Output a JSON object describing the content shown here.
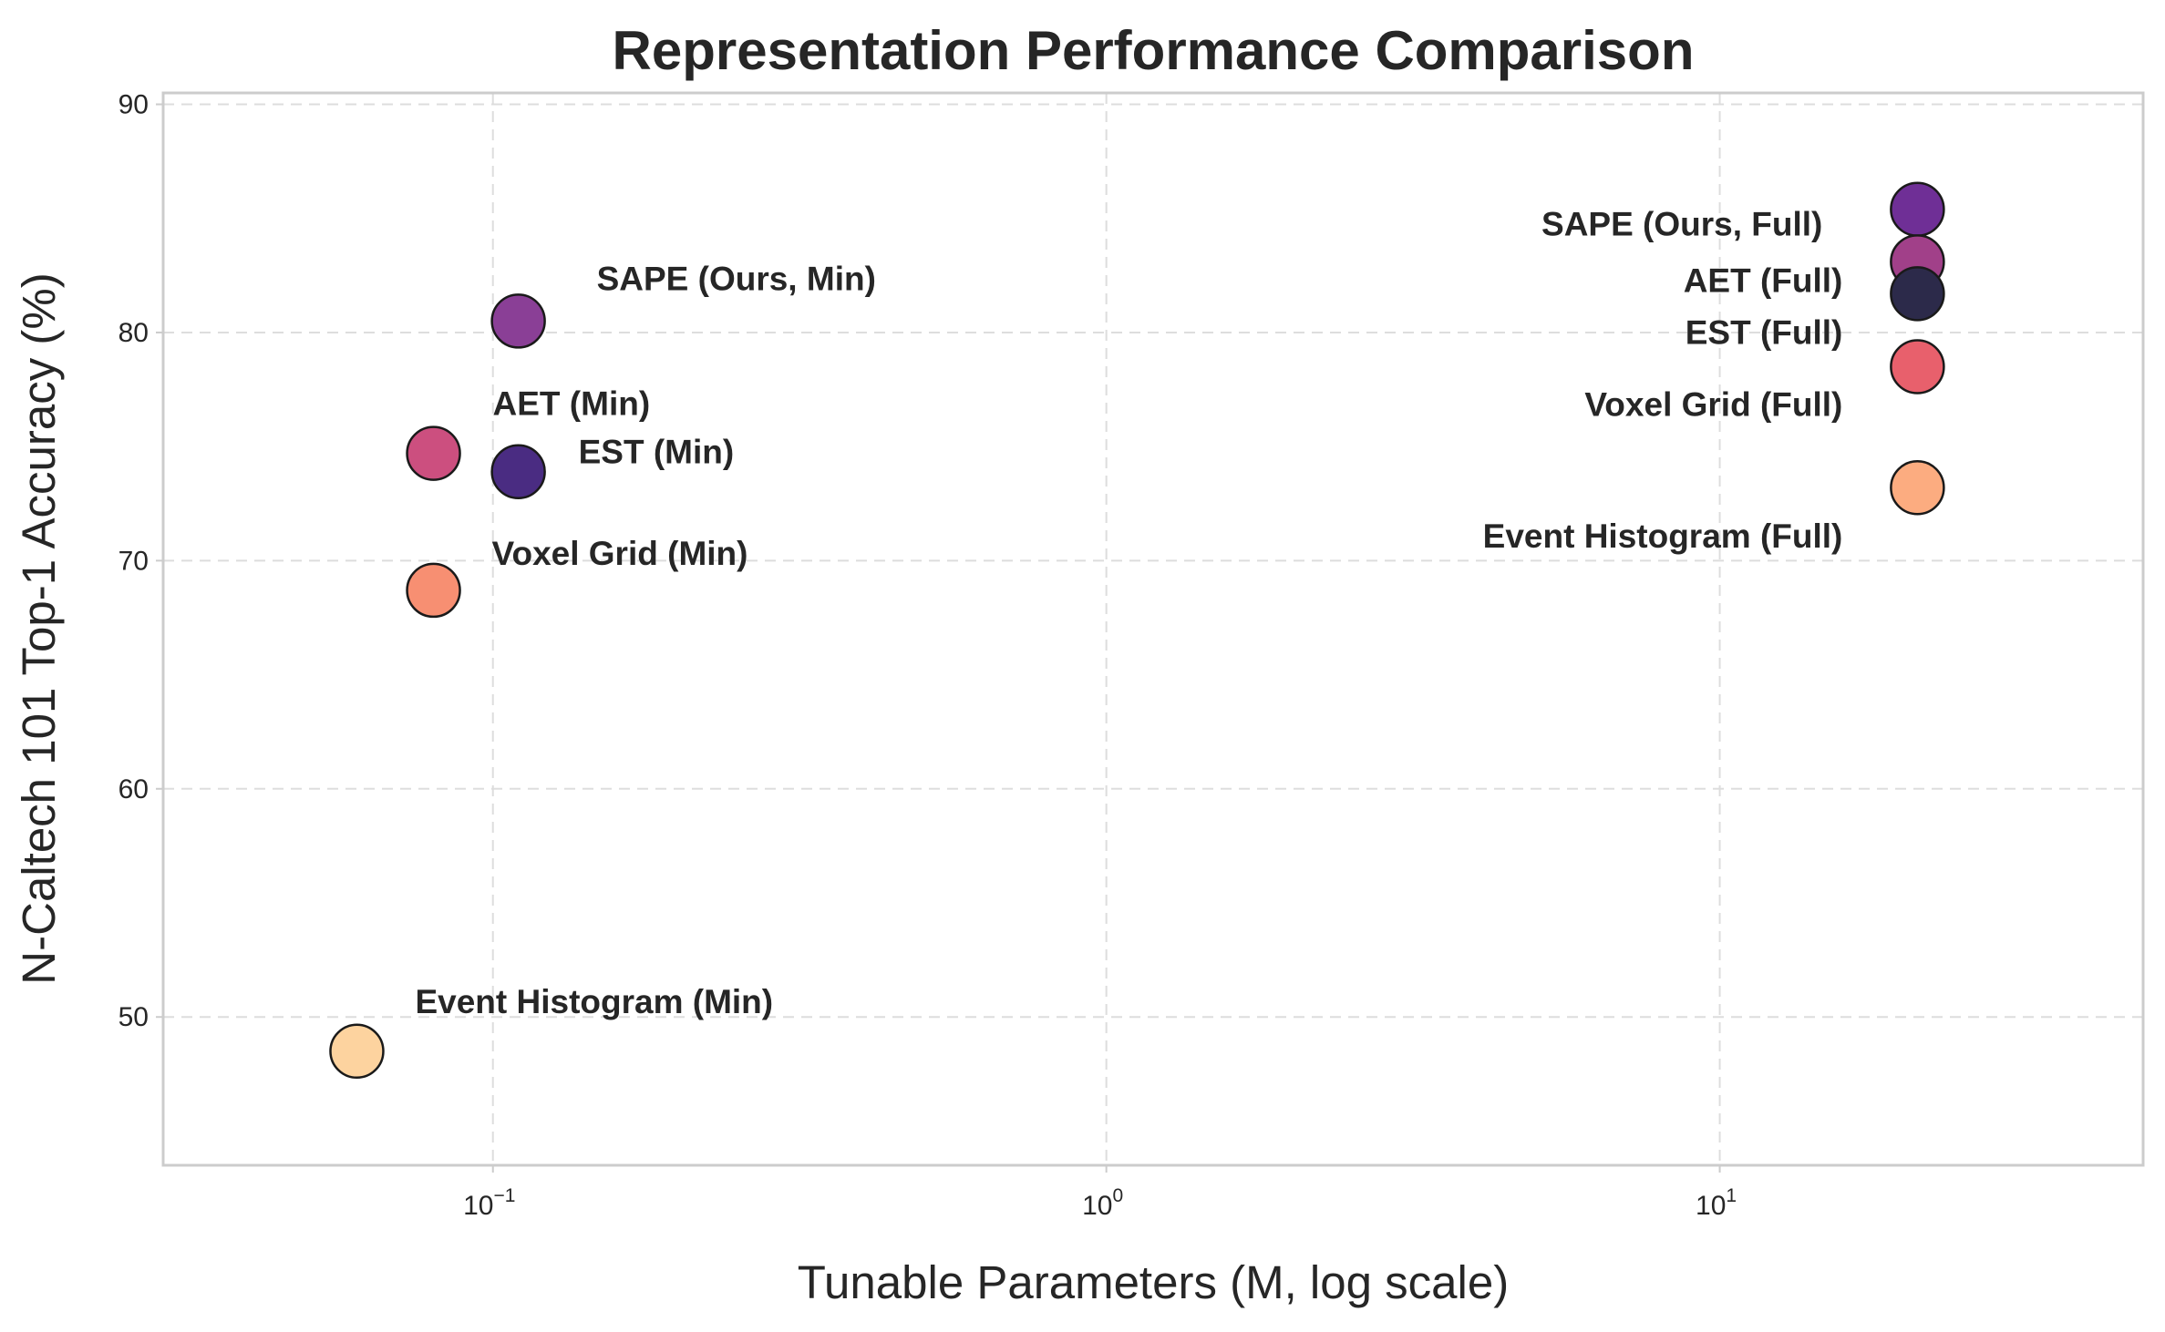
{
  "chart_data": {
    "type": "scatter",
    "title": "Representation Performance Comparison",
    "xlabel": "Tunable Parameters (M, log scale)",
    "ylabel": "N-Caltech 101 Top-1 Accuracy (%)",
    "x_scale": "log",
    "xlim": [
      0.029,
      49
    ],
    "ylim": [
      43.5,
      90.5
    ],
    "grid": true,
    "x_ticks": [
      {
        "value": 0.1,
        "base": "10",
        "exp": "−1"
      },
      {
        "value": 1,
        "base": "10",
        "exp": "0"
      },
      {
        "value": 10,
        "base": "10",
        "exp": "1"
      }
    ],
    "y_ticks": [
      50,
      60,
      70,
      80,
      90
    ],
    "points": [
      {
        "label": "SAPE (Ours, Min)",
        "x": 0.11,
        "y": 80.5,
        "color": "#8a3f96"
      },
      {
        "label": "AET (Min)",
        "x": 0.08,
        "y": 74.7,
        "color": "#cc4f7f"
      },
      {
        "label": "EST (Min)",
        "x": 0.11,
        "y": 73.9,
        "color": "#4a2c82"
      },
      {
        "label": "Voxel Grid (Min)",
        "x": 0.08,
        "y": 68.7,
        "color": "#f78f72"
      },
      {
        "label": "Event Histogram (Min)",
        "x": 0.06,
        "y": 48.5,
        "color": "#fdd39f"
      },
      {
        "label": "SAPE (Ours, Full)",
        "x": 21.0,
        "y": 85.4,
        "color": "#6f2f96"
      },
      {
        "label": "AET (Full)",
        "x": 21.0,
        "y": 83.1,
        "color": "#a14089"
      },
      {
        "label": "EST (Full)",
        "x": 21.0,
        "y": 81.7,
        "color": "#2c2a4a"
      },
      {
        "label": "Voxel Grid (Full)",
        "x": 21.0,
        "y": 78.5,
        "color": "#e8606c"
      },
      {
        "label": "Event Histogram (Full)",
        "x": 21.0,
        "y": 73.2,
        "color": "#fcac80"
      }
    ]
  }
}
